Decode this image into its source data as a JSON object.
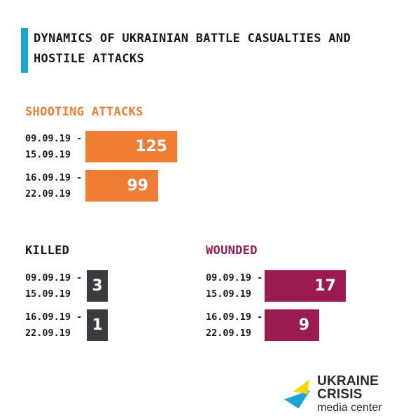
{
  "title": "Dynamics of Ukrainian battle casualties and hostile attacks",
  "colors": {
    "accent_bar": "#1aa5d6",
    "shooting": "#f07d34",
    "killed": "#3a3a3f",
    "wounded": "#9a1b4f"
  },
  "logo": {
    "name": "UKRAINE CRISIS",
    "sub": "media center"
  },
  "chart_data": [
    {
      "type": "bar",
      "title": "Shooting attacks",
      "categories": [
        "09.09.19 -\n15.09.19",
        "16.09.19 -\n22.09.19"
      ],
      "values": [
        125,
        99
      ]
    },
    {
      "type": "bar",
      "title": "Killed",
      "categories": [
        "09.09.19 -\n15.09.19",
        "16.09.19 -\n22.09.19"
      ],
      "values": [
        3,
        1
      ]
    },
    {
      "type": "bar",
      "title": "Wounded",
      "categories": [
        "09.09.19 -\n15.09.19",
        "16.09.19 -\n22.09.19"
      ],
      "values": [
        17,
        9
      ]
    }
  ]
}
